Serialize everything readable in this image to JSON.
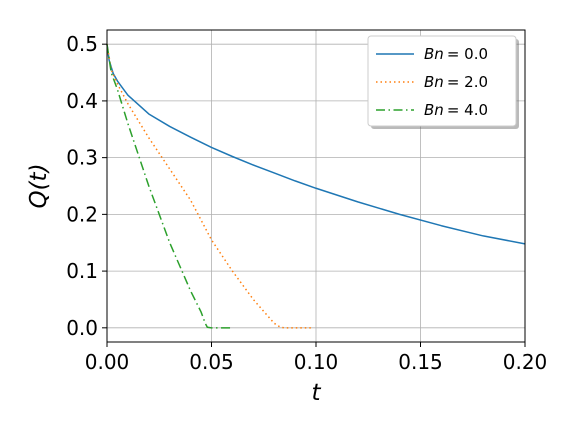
{
  "chart_data": {
    "type": "line",
    "xlabel": "t",
    "ylabel": "Q(t)",
    "xlim": [
      0,
      0.2
    ],
    "ylim": [
      -0.025,
      0.525
    ],
    "xticks": [
      0.0,
      0.05,
      0.1,
      0.15,
      0.2
    ],
    "xtick_labels": [
      "0.00",
      "0.05",
      "0.10",
      "0.15",
      "0.20"
    ],
    "yticks": [
      0.0,
      0.1,
      0.2,
      0.3,
      0.4,
      0.5
    ],
    "ytick_labels": [
      "0.0",
      "0.1",
      "0.2",
      "0.3",
      "0.4",
      "0.5"
    ],
    "grid": true,
    "legend_position": "top-right",
    "series": [
      {
        "name": "Bn = 0.0",
        "legend_var": "Bn",
        "legend_value": "= 0.0",
        "color": "#1f77b4",
        "style": "solid",
        "x": [
          0,
          0.001,
          0.003,
          0.005,
          0.01,
          0.02,
          0.03,
          0.04,
          0.05,
          0.06,
          0.07,
          0.08,
          0.09,
          0.1,
          0.12,
          0.14,
          0.16,
          0.18,
          0.2
        ],
        "y": [
          0.5,
          0.472,
          0.448,
          0.435,
          0.41,
          0.377,
          0.355,
          0.336,
          0.318,
          0.302,
          0.287,
          0.273,
          0.259,
          0.246,
          0.222,
          0.2,
          0.18,
          0.162,
          0.148
        ]
      },
      {
        "name": "Bn = 2.0",
        "legend_var": "Bn",
        "legend_value": "= 2.0",
        "color": "#ff7f0e",
        "style": "dotted",
        "x": [
          0,
          0.002,
          0.005,
          0.01,
          0.02,
          0.03,
          0.04,
          0.05,
          0.06,
          0.07,
          0.08,
          0.083,
          0.085,
          0.09,
          0.098
        ],
        "y": [
          0.5,
          0.455,
          0.43,
          0.395,
          0.335,
          0.28,
          0.225,
          0.155,
          0.1,
          0.05,
          0.008,
          0.001,
          0.0,
          0.0,
          0.0
        ]
      },
      {
        "name": "Bn = 4.0",
        "legend_var": "Bn",
        "legend_value": "= 4.0",
        "color": "#2ca02c",
        "style": "dashdot",
        "x": [
          0,
          0.002,
          0.005,
          0.01,
          0.02,
          0.03,
          0.04,
          0.045,
          0.047,
          0.048,
          0.05,
          0.055,
          0.06
        ],
        "y": [
          0.5,
          0.45,
          0.42,
          0.36,
          0.25,
          0.15,
          0.065,
          0.028,
          0.008,
          0.001,
          0.0,
          0.0,
          0.0
        ]
      }
    ]
  }
}
